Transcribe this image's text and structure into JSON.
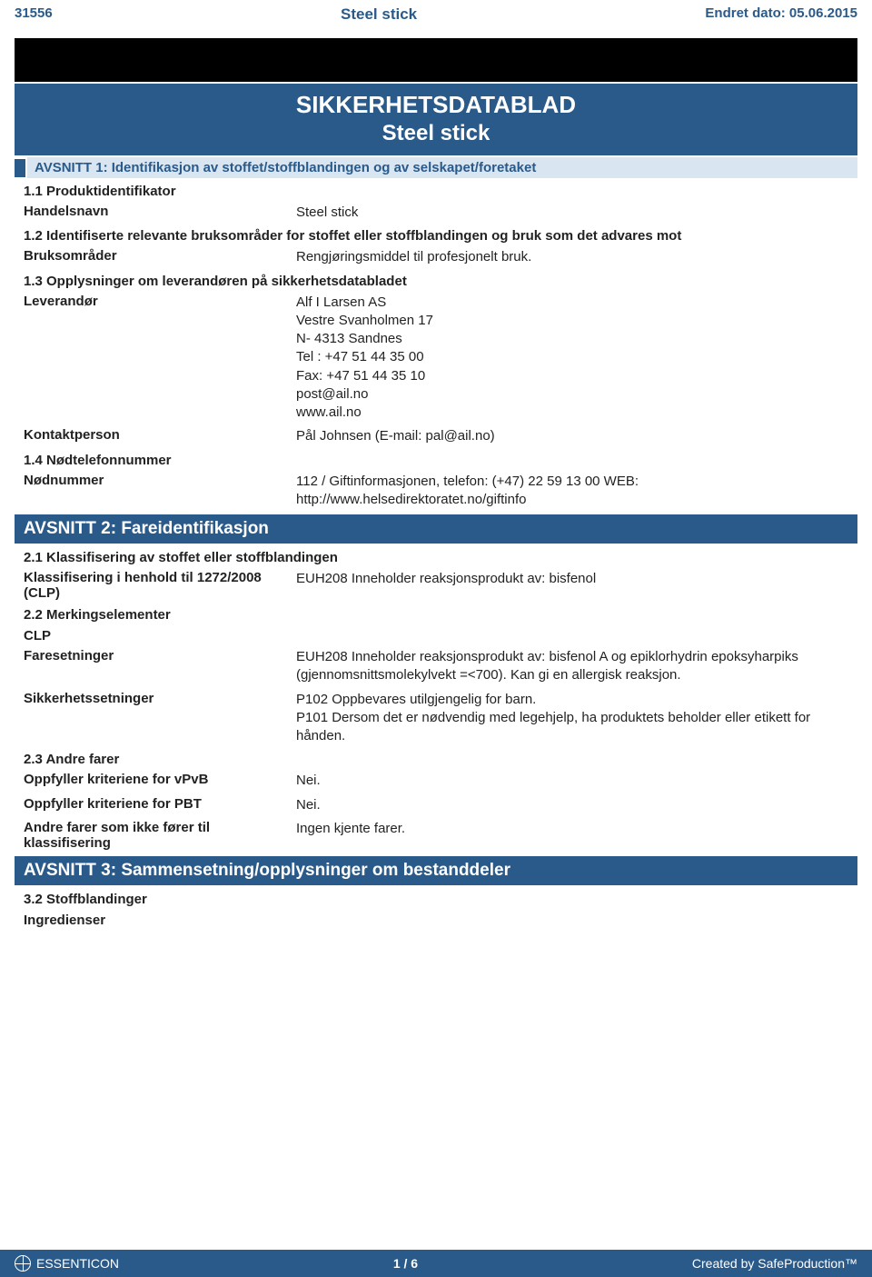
{
  "header": {
    "doc_id": "31556",
    "product": "Steel stick",
    "date_label": "Endret dato: 05.06.2015"
  },
  "title": {
    "line1": "SIKKERHETSDATABLAD",
    "line2": "Steel stick"
  },
  "section1": {
    "heading": "AVSNITT 1: Identifikasjon av stoffet/stoffblandingen og av selskapet/foretaket",
    "s11": "1.1 Produktidentifikator",
    "handelsnavn_l": "Handelsnavn",
    "handelsnavn_v": "Steel stick",
    "s12": "1.2 Identifiserte relevante bruksområder for stoffet eller stoffblandingen og bruk som det advares mot",
    "bruks_l": "Bruksområder",
    "bruks_v": "Rengjøringsmiddel til profesjonelt bruk.",
    "s13": "1.3 Opplysninger om leverandøren på sikkerhetsdatabladet",
    "lever_l": "Leverandør",
    "lever_v": "Alf I Larsen AS\nVestre Svanholmen 17\nN- 4313 Sandnes\nTel : +47 51 44 35 00\nFax: +47 51 44 35 10\npost@ail.no\nwww.ail.no",
    "kontakt_l": "Kontaktperson",
    "kontakt_v": "Pål Johnsen (E-mail: pal@ail.no)",
    "s14": "1.4 Nødtelefonnummer",
    "nod_l": "Nødnummer",
    "nod_v": "112 / Giftinformasjonen, telefon: (+47) 22 59 13 00 WEB: http://www.helsedirektoratet.no/giftinfo"
  },
  "section2": {
    "heading": "AVSNITT 2: Fareidentifikasjon",
    "s21": "2.1 Klassifisering av stoffet eller stoffblandingen",
    "klass_l": "Klassifisering i henhold til 1272/2008 (CLP)",
    "klass_v": "EUH208 Inneholder reaksjonsprodukt av: bisfenol",
    "s22": "2.2 Merkingselementer",
    "clp": "CLP",
    "fare_l": "Faresetninger",
    "fare_v": "EUH208 Inneholder reaksjonsprodukt av: bisfenol A og epiklorhydrin epoksyharpiks (gjennomsnittsmolekylvekt =<700). Kan gi en allergisk reaksjon.",
    "sikk_l": "Sikkerhetssetninger",
    "sikk_v": "P102 Oppbevares utilgjengelig for barn.\nP101 Dersom det er nødvendig med legehjelp, ha produktets beholder eller etikett for hånden.",
    "s23": "2.3 Andre farer",
    "vpvb_l": "Oppfyller kriteriene for vPvB",
    "vpvb_v": "Nei.",
    "pbt_l": "Oppfyller kriteriene for PBT",
    "pbt_v": "Nei.",
    "andre_l": "Andre farer som ikke fører til klassifisering",
    "andre_v": "Ingen kjente farer."
  },
  "section3": {
    "heading": "AVSNITT 3: Sammensetning/opplysninger om bestanddeler",
    "s32": "3.2 Stoffblandinger",
    "ing": "Ingredienser"
  },
  "footer": {
    "brand": "ESSENTICON",
    "page": "1  /  6",
    "credit": "Created by SafeProduction™"
  },
  "colors": {
    "primary": "#2a5a8a",
    "sub_bg": "#d9e6f2",
    "text": "#222222"
  }
}
